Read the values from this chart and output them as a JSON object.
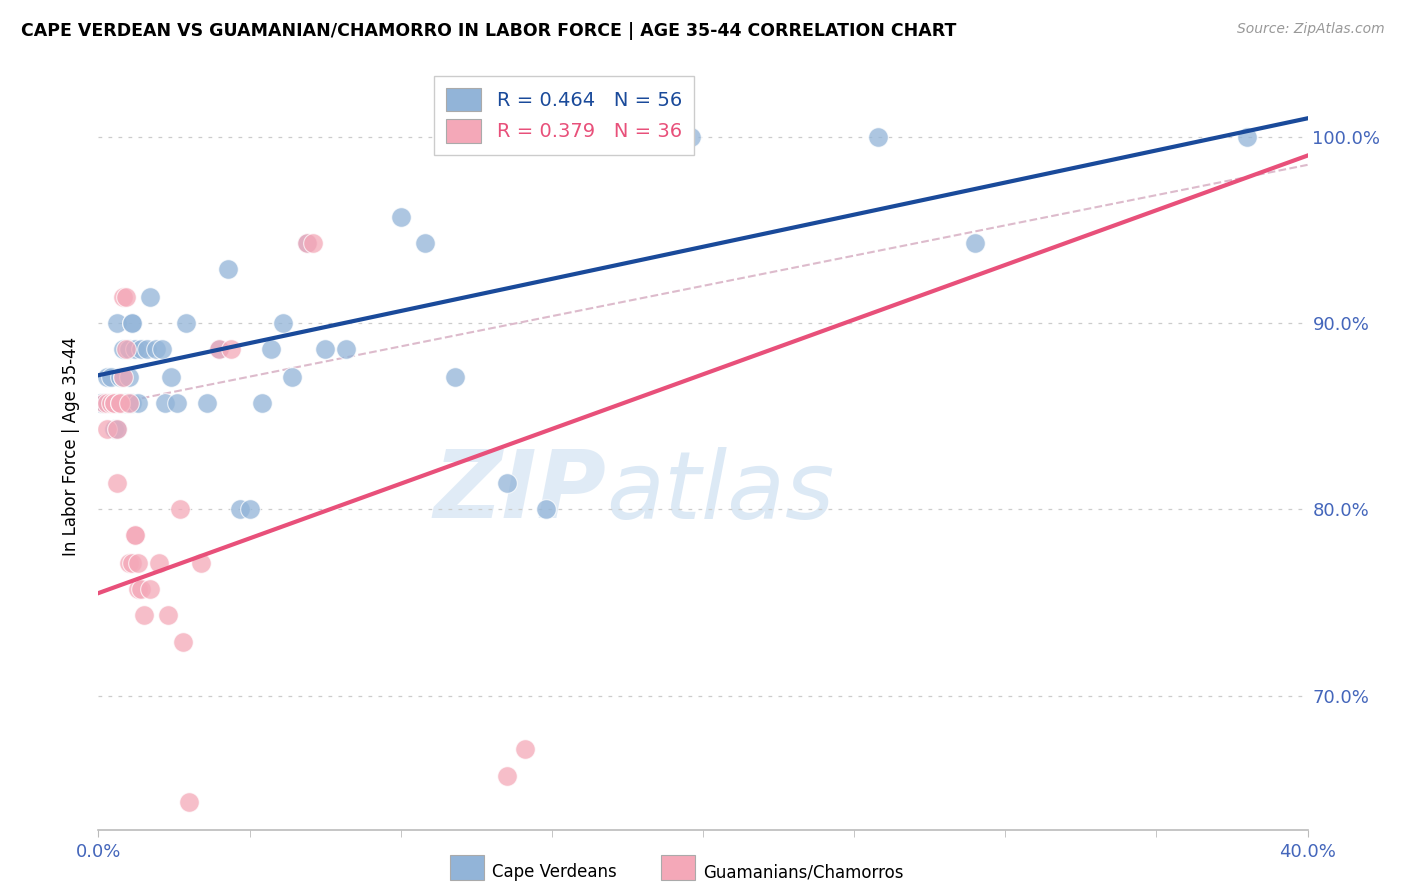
{
  "title": "CAPE VERDEAN VS GUAMANIAN/CHAMORRO IN LABOR FORCE | AGE 35-44 CORRELATION CHART",
  "source": "Source: ZipAtlas.com",
  "ylabel": "In Labor Force | Age 35-44",
  "legend_blue": "R = 0.464   N = 56",
  "legend_pink": "R = 0.379   N = 36",
  "legend_label_blue": "Cape Verdeans",
  "legend_label_pink": "Guamanians/Chamorros",
  "watermark_zip": "ZIP",
  "watermark_atlas": "atlas",
  "blue_color": "#92B4D8",
  "pink_color": "#F4A8B8",
  "line_blue": "#1A4A9A",
  "line_pink": "#E8507A",
  "line_dash_color": "#DDBBCC",
  "xmin": 0.0,
  "xmax": 0.4,
  "ymin": 0.628,
  "ymax": 1.04,
  "blue_points": [
    [
      0.001,
      0.857
    ],
    [
      0.001,
      0.857
    ],
    [
      0.002,
      0.857
    ],
    [
      0.003,
      0.871
    ],
    [
      0.004,
      0.871
    ],
    [
      0.004,
      0.857
    ],
    [
      0.005,
      0.857
    ],
    [
      0.005,
      0.843
    ],
    [
      0.006,
      0.9
    ],
    [
      0.006,
      0.857
    ],
    [
      0.006,
      0.843
    ],
    [
      0.007,
      0.871
    ],
    [
      0.007,
      0.857
    ],
    [
      0.008,
      0.886
    ],
    [
      0.008,
      0.871
    ],
    [
      0.008,
      0.857
    ],
    [
      0.009,
      0.857
    ],
    [
      0.009,
      0.857
    ],
    [
      0.01,
      0.886
    ],
    [
      0.01,
      0.871
    ],
    [
      0.01,
      0.857
    ],
    [
      0.011,
      0.9
    ],
    [
      0.011,
      0.9
    ],
    [
      0.011,
      0.857
    ],
    [
      0.012,
      0.886
    ],
    [
      0.013,
      0.857
    ],
    [
      0.014,
      0.886
    ],
    [
      0.016,
      0.886
    ],
    [
      0.017,
      0.914
    ],
    [
      0.019,
      0.886
    ],
    [
      0.021,
      0.886
    ],
    [
      0.022,
      0.857
    ],
    [
      0.024,
      0.871
    ],
    [
      0.026,
      0.857
    ],
    [
      0.029,
      0.9
    ],
    [
      0.036,
      0.857
    ],
    [
      0.04,
      0.886
    ],
    [
      0.043,
      0.929
    ],
    [
      0.047,
      0.8
    ],
    [
      0.05,
      0.8
    ],
    [
      0.054,
      0.857
    ],
    [
      0.057,
      0.886
    ],
    [
      0.061,
      0.9
    ],
    [
      0.064,
      0.871
    ],
    [
      0.069,
      0.943
    ],
    [
      0.075,
      0.886
    ],
    [
      0.082,
      0.886
    ],
    [
      0.1,
      0.957
    ],
    [
      0.108,
      0.943
    ],
    [
      0.118,
      0.871
    ],
    [
      0.135,
      0.814
    ],
    [
      0.148,
      0.8
    ],
    [
      0.196,
      1.0
    ],
    [
      0.258,
      1.0
    ],
    [
      0.29,
      0.943
    ],
    [
      0.38,
      1.0
    ]
  ],
  "pink_points": [
    [
      0.002,
      0.857
    ],
    [
      0.003,
      0.843
    ],
    [
      0.003,
      0.857
    ],
    [
      0.004,
      0.857
    ],
    [
      0.005,
      0.857
    ],
    [
      0.005,
      0.857
    ],
    [
      0.006,
      0.814
    ],
    [
      0.006,
      0.843
    ],
    [
      0.007,
      0.857
    ],
    [
      0.007,
      0.857
    ],
    [
      0.008,
      0.871
    ],
    [
      0.008,
      0.914
    ],
    [
      0.009,
      0.914
    ],
    [
      0.009,
      0.886
    ],
    [
      0.01,
      0.857
    ],
    [
      0.01,
      0.771
    ],
    [
      0.011,
      0.771
    ],
    [
      0.012,
      0.786
    ],
    [
      0.012,
      0.786
    ],
    [
      0.013,
      0.771
    ],
    [
      0.013,
      0.757
    ],
    [
      0.014,
      0.757
    ],
    [
      0.015,
      0.743
    ],
    [
      0.017,
      0.757
    ],
    [
      0.02,
      0.771
    ],
    [
      0.023,
      0.743
    ],
    [
      0.027,
      0.8
    ],
    [
      0.028,
      0.729
    ],
    [
      0.03,
      0.643
    ],
    [
      0.034,
      0.771
    ],
    [
      0.04,
      0.886
    ],
    [
      0.044,
      0.886
    ],
    [
      0.069,
      0.943
    ],
    [
      0.071,
      0.943
    ],
    [
      0.135,
      0.657
    ],
    [
      0.141,
      0.671
    ]
  ],
  "blue_line": [
    [
      0.0,
      0.872
    ],
    [
      0.4,
      1.01
    ]
  ],
  "pink_line": [
    [
      0.0,
      0.755
    ],
    [
      0.4,
      0.99
    ]
  ],
  "dash_line": [
    [
      0.0,
      0.855
    ],
    [
      0.4,
      0.985
    ]
  ],
  "ytick_positions": [
    0.7,
    0.8,
    0.9,
    1.0
  ],
  "ytick_labels": [
    "70.0%",
    "80.0%",
    "90.0%",
    "100.0%"
  ],
  "xtick_left_label": "0.0%",
  "xtick_right_label": "40.0%",
  "xtick_minor_positions": [
    0.05,
    0.1,
    0.15,
    0.2,
    0.25,
    0.3,
    0.35
  ],
  "grid_color": "#CCCCCC",
  "tick_color": "#4466BB",
  "axis_label_color": "#4466BB"
}
